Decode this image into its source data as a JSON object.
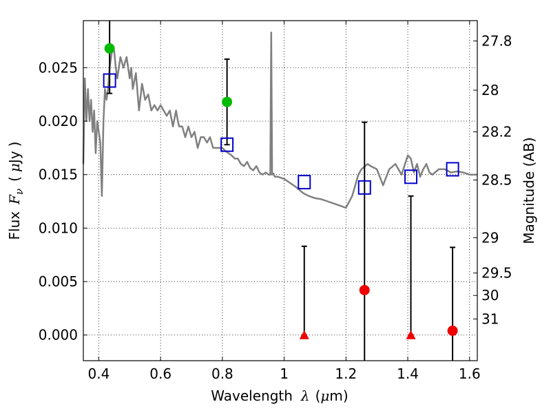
{
  "chart_data": {
    "type": "scatter",
    "xlabel_parts": [
      "Wavelength",
      "λ",
      "(",
      "μ",
      "m)"
    ],
    "ylabel_parts": [
      "Flux",
      "F",
      "ν",
      "(",
      "μ",
      "Jy",
      ")"
    ],
    "y2label": "Magnitude (AB)",
    "xlim": [
      0.35,
      1.625
    ],
    "ylim": [
      -0.0024,
      0.0294
    ],
    "x_ticks": [
      0.4,
      0.6,
      0.8,
      1.0,
      1.2,
      1.4,
      1.6
    ],
    "x_tick_labels": [
      "0.4",
      "0.6",
      "0.8",
      "1",
      "1.2",
      "1.4",
      "1.6"
    ],
    "y_ticks": [
      0.0,
      0.005,
      0.01,
      0.015,
      0.02,
      0.025
    ],
    "y_tick_labels": [
      "0.000",
      "0.005",
      "0.010",
      "0.015",
      "0.020",
      "0.025"
    ],
    "y2_ticks": [
      {
        "label": "27.8",
        "flux": 0.0275
      },
      {
        "label": "28",
        "flux": 0.0229
      },
      {
        "label": "28.2",
        "flux": 0.019
      },
      {
        "label": "28.5",
        "flux": 0.0145
      },
      {
        "label": "29",
        "flux": 0.0091
      },
      {
        "label": "29.5",
        "flux": 0.0058
      },
      {
        "label": "30",
        "flux": 0.0037
      },
      {
        "label": "31",
        "flux": 0.0015
      }
    ],
    "grid": true,
    "colors": {
      "model": "#808080",
      "model_points": "#0000cc",
      "detections_green": "#00bb00",
      "detections_red": "#ee0000",
      "upper_limits": "#ee0000",
      "errorbars": "#000000"
    },
    "model_spectrum": {
      "x": [
        0.35,
        0.355,
        0.36,
        0.365,
        0.37,
        0.375,
        0.38,
        0.385,
        0.39,
        0.395,
        0.4,
        0.405,
        0.41,
        0.415,
        0.42,
        0.425,
        0.43,
        0.435,
        0.44,
        0.445,
        0.45,
        0.455,
        0.46,
        0.47,
        0.48,
        0.49,
        0.5,
        0.505,
        0.51,
        0.52,
        0.53,
        0.54,
        0.55,
        0.56,
        0.57,
        0.58,
        0.59,
        0.6,
        0.61,
        0.62,
        0.63,
        0.64,
        0.65,
        0.656,
        0.66,
        0.67,
        0.68,
        0.69,
        0.7,
        0.71,
        0.72,
        0.73,
        0.74,
        0.75,
        0.76,
        0.77,
        0.78,
        0.79,
        0.8,
        0.81,
        0.82,
        0.83,
        0.84,
        0.85,
        0.86,
        0.87,
        0.88,
        0.89,
        0.9,
        0.91,
        0.92,
        0.93,
        0.94,
        0.95,
        0.955,
        0.958,
        0.961,
        0.965,
        0.97,
        0.98,
        1.0,
        1.02,
        1.04,
        1.06,
        1.08,
        1.1,
        1.12,
        1.14,
        1.16,
        1.18,
        1.2,
        1.22,
        1.24,
        1.25,
        1.27,
        1.28,
        1.3,
        1.32,
        1.34,
        1.36,
        1.38,
        1.4,
        1.41,
        1.42,
        1.43,
        1.44,
        1.45,
        1.46,
        1.47,
        1.48,
        1.5,
        1.52,
        1.54,
        1.56,
        1.58,
        1.6,
        1.625
      ],
      "y": [
        0.016,
        0.024,
        0.02,
        0.023,
        0.02,
        0.022,
        0.019,
        0.021,
        0.017,
        0.02,
        0.019,
        0.018,
        0.013,
        0.02,
        0.023,
        0.022,
        0.023,
        0.025,
        0.026,
        0.027,
        0.0265,
        0.025,
        0.024,
        0.026,
        0.025,
        0.026,
        0.024,
        0.025,
        0.023,
        0.0245,
        0.021,
        0.0235,
        0.022,
        0.0225,
        0.021,
        0.0215,
        0.021,
        0.0215,
        0.021,
        0.0205,
        0.021,
        0.0195,
        0.021,
        0.02,
        0.0195,
        0.0195,
        0.0185,
        0.0195,
        0.0185,
        0.019,
        0.0175,
        0.0185,
        0.0185,
        0.018,
        0.0185,
        0.0175,
        0.0175,
        0.0175,
        0.0175,
        0.0172,
        0.017,
        0.0168,
        0.0165,
        0.0165,
        0.016,
        0.0158,
        0.0162,
        0.0156,
        0.0154,
        0.0158,
        0.0152,
        0.015,
        0.0152,
        0.015,
        0.015,
        0.0283,
        0.015,
        0.0151,
        0.0148,
        0.0148,
        0.0146,
        0.0142,
        0.0138,
        0.0133,
        0.013,
        0.0128,
        0.0127,
        0.0125,
        0.0123,
        0.0121,
        0.0119,
        0.013,
        0.015,
        0.0155,
        0.016,
        0.0158,
        0.0155,
        0.014,
        0.0155,
        0.016,
        0.015,
        0.0168,
        0.0165,
        0.0152,
        0.016,
        0.0148,
        0.0155,
        0.016,
        0.0152,
        0.015,
        0.0155,
        0.0155,
        0.0152,
        0.0153,
        0.0152,
        0.015,
        0.015
      ]
    },
    "model_points": {
      "x": [
        0.435,
        0.815,
        1.065,
        1.26,
        1.41,
        1.545
      ],
      "y": [
        0.0238,
        0.0178,
        0.0143,
        0.0138,
        0.0148,
        0.0155
      ]
    },
    "detections_green": {
      "x": [
        0.435,
        0.815
      ],
      "y": [
        0.0268,
        0.0218
      ],
      "yerr_low": [
        0.0042,
        0.004
      ],
      "yerr_high": [
        0.003,
        0.004
      ]
    },
    "detections_red": {
      "x": [
        1.26,
        1.545
      ],
      "y": [
        0.0042,
        0.0004
      ],
      "yerr_low": [
        0.007,
        0.003
      ],
      "yerr_high": [
        0.0157,
        0.0078
      ]
    },
    "upper_limits": {
      "x": [
        1.065,
        1.41
      ],
      "y": [
        0.0,
        0.0
      ],
      "yerr_high": [
        0.0083,
        0.013
      ]
    }
  }
}
